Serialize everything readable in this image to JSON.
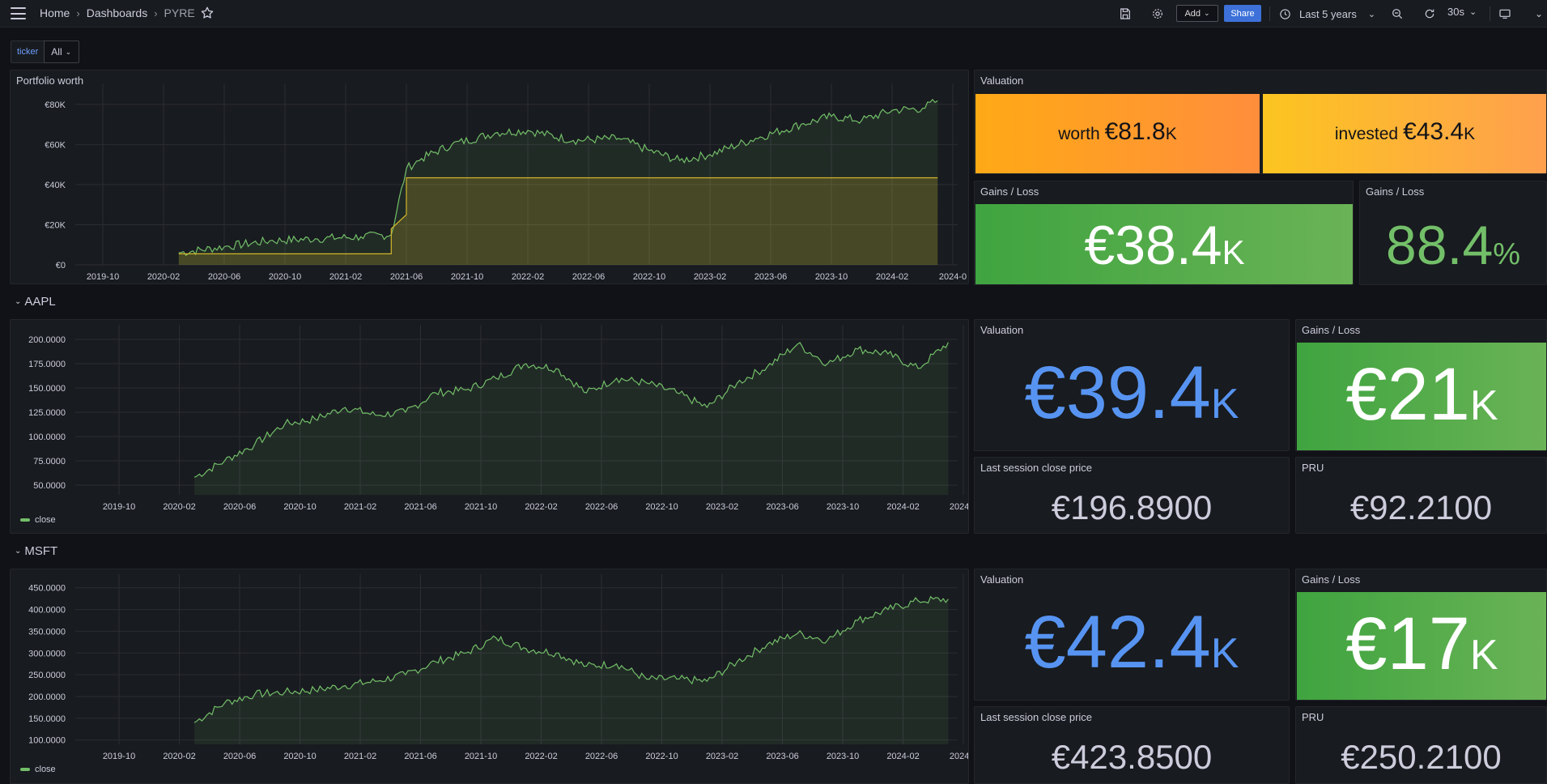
{
  "breadcrumb": {
    "home": "Home",
    "dashboards": "Dashboards",
    "current": "PYRE"
  },
  "toolbar": {
    "add_label": "Add",
    "share_label": "Share",
    "time_range": "Last 5 years",
    "refresh_interval": "30s"
  },
  "variables": {
    "ticker_label": "ticker",
    "ticker_value": "All"
  },
  "colors": {
    "accent": "#3d71d9",
    "green": "#73bf69",
    "stat_blue": "#5794f2",
    "yellow": "#f2cc0c"
  },
  "portfolio": {
    "title": "Portfolio worth",
    "valuation_title": "Valuation",
    "worth": {
      "prefix": "worth ",
      "value": "€81.8",
      "unit": "K"
    },
    "invested": {
      "prefix": "invested ",
      "value": "€43.4",
      "unit": "K"
    },
    "gains_title": "Gains / Loss",
    "gains_value": {
      "value": "€38.4",
      "unit": "K"
    },
    "gains_pct": {
      "value": "88.4",
      "unit": "%"
    }
  },
  "aapl": {
    "row_title": "AAPL",
    "legend": "close",
    "valuation_title": "Valuation",
    "valuation": {
      "value": "€39.4",
      "unit": "K"
    },
    "gains_title": "Gains / Loss",
    "gains": {
      "value": "€21",
      "unit": "K"
    },
    "close_title": "Last session close price",
    "close": "€196.8900",
    "pru_title": "PRU",
    "pru": "€92.2100"
  },
  "msft": {
    "row_title": "MSFT",
    "legend": "close",
    "valuation_title": "Valuation",
    "valuation": {
      "value": "€42.4",
      "unit": "K"
    },
    "gains_title": "Gains / Loss",
    "gains": {
      "value": "€17",
      "unit": "K"
    },
    "close_title": "Last session close price",
    "close": "€423.8500",
    "pru_title": "PRU",
    "pru": "€250.2100"
  },
  "chart_data": [
    {
      "type": "area",
      "title": "Portfolio worth",
      "x_ticks": [
        "2019-10",
        "2020-02",
        "2020-06",
        "2020-10",
        "2021-02",
        "2021-06",
        "2021-10",
        "2022-02",
        "2022-06",
        "2022-10",
        "2023-02",
        "2023-06",
        "2023-10",
        "2024-02",
        "2024-0"
      ],
      "y_ticks": [
        "€0",
        "€20K",
        "€40K",
        "€60K",
        "€80K"
      ],
      "ylim": [
        0,
        88000
      ],
      "series": [
        {
          "x": [
            "2020-03",
            "2020-06",
            "2020-09",
            "2020-12",
            "2021-03",
            "2021-05",
            "2021-06",
            "2021-07",
            "2021-09",
            "2021-12",
            "2022-02",
            "2022-05",
            "2022-08",
            "2022-10",
            "2022-12",
            "2023-02",
            "2023-05",
            "2023-08",
            "2023-10",
            "2023-12",
            "2024-02",
            "2024-04",
            "2024-05"
          ],
          "values": [
            6000,
            9000,
            12000,
            13000,
            14000,
            15000,
            48000,
            53000,
            60000,
            66000,
            67000,
            62000,
            63000,
            57000,
            52000,
            55000,
            63000,
            70000,
            74000,
            72000,
            77000,
            78000,
            81800
          ]
        },
        {
          "x": [
            "2020-03",
            "2021-05",
            "2021-05",
            "2021-06",
            "2021-06",
            "2024-05"
          ],
          "values": [
            5500,
            5500,
            18000,
            25000,
            43400,
            43400
          ]
        }
      ]
    },
    {
      "type": "area",
      "title": "AAPL",
      "x_ticks": [
        "2019-10",
        "2020-02",
        "2020-06",
        "2020-10",
        "2021-02",
        "2021-06",
        "2021-10",
        "2022-02",
        "2022-06",
        "2022-10",
        "2023-02",
        "2023-06",
        "2023-10",
        "2024-02",
        "2024-0"
      ],
      "y_ticks": [
        "50.0000",
        "75.0000",
        "100.0000",
        "125.0000",
        "150.0000",
        "175.0000",
        "200.0000"
      ],
      "ylim": [
        40,
        210
      ],
      "series": [
        {
          "name": "close",
          "x": [
            "2020-03",
            "2020-05",
            "2020-07",
            "2020-09",
            "2020-11",
            "2021-01",
            "2021-03",
            "2021-05",
            "2021-07",
            "2021-09",
            "2021-11",
            "2022-01",
            "2022-03",
            "2022-05",
            "2022-07",
            "2022-09",
            "2022-11",
            "2023-01",
            "2023-03",
            "2023-05",
            "2023-07",
            "2023-09",
            "2023-11",
            "2024-01",
            "2024-03",
            "2024-05"
          ],
          "values": [
            58,
            75,
            92,
            113,
            118,
            130,
            122,
            125,
            145,
            148,
            160,
            175,
            170,
            145,
            160,
            155,
            145,
            130,
            155,
            172,
            195,
            175,
            190,
            185,
            170,
            196.89
          ]
        }
      ]
    },
    {
      "type": "area",
      "title": "MSFT",
      "x_ticks": [
        "2019-10",
        "2020-02",
        "2020-06",
        "2020-10",
        "2021-02",
        "2021-06",
        "2021-10",
        "2022-02",
        "2022-06",
        "2022-10",
        "2023-02",
        "2023-06",
        "2023-10",
        "2024-02",
        "2024-0"
      ],
      "y_ticks": [
        "100.0000",
        "150.0000",
        "200.0000",
        "250.0000",
        "300.0000",
        "350.0000",
        "400.0000",
        "450.0000"
      ],
      "ylim": [
        90,
        470
      ],
      "series": [
        {
          "name": "close",
          "x": [
            "2020-03",
            "2020-05",
            "2020-07",
            "2020-09",
            "2020-11",
            "2021-01",
            "2021-03",
            "2021-05",
            "2021-07",
            "2021-09",
            "2021-11",
            "2022-01",
            "2022-03",
            "2022-05",
            "2022-07",
            "2022-09",
            "2022-11",
            "2023-01",
            "2023-03",
            "2023-05",
            "2023-07",
            "2023-09",
            "2023-11",
            "2024-01",
            "2024-03",
            "2024-05"
          ],
          "values": [
            140,
            185,
            205,
            210,
            215,
            225,
            235,
            250,
            280,
            300,
            335,
            310,
            300,
            270,
            275,
            240,
            240,
            235,
            280,
            320,
            345,
            330,
            375,
            400,
            420,
            423.85
          ]
        }
      ]
    }
  ]
}
